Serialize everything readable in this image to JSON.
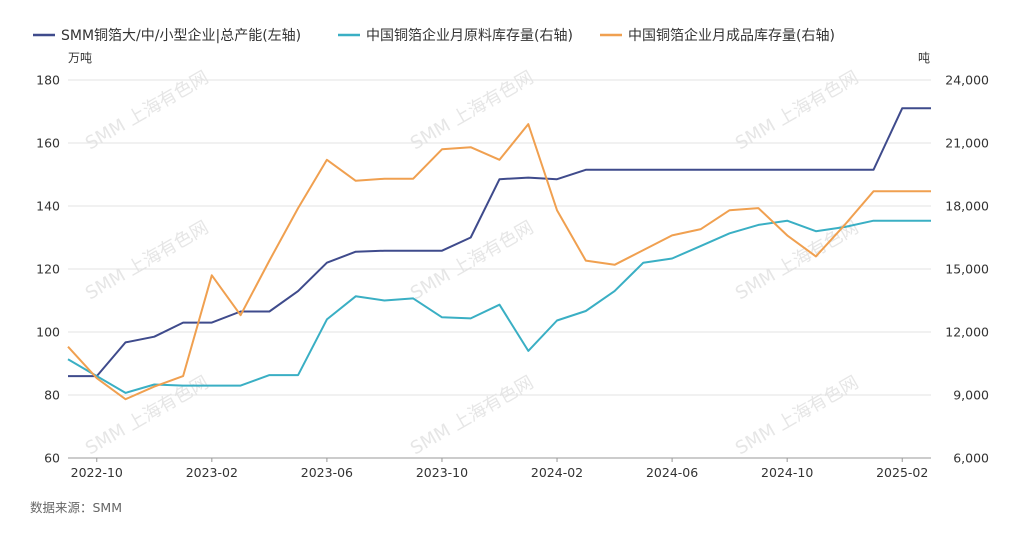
{
  "chart_data": {
    "type": "line",
    "title": "",
    "x": [
      "2022-09",
      "2022-10",
      "2022-11",
      "2022-12",
      "2023-01",
      "2023-02",
      "2023-03",
      "2023-04",
      "2023-05",
      "2023-06",
      "2023-07",
      "2023-08",
      "2023-09",
      "2023-10",
      "2023-11",
      "2023-12",
      "2024-01",
      "2024-02",
      "2024-03",
      "2024-04",
      "2024-05",
      "2024-06",
      "2024-07",
      "2024-08",
      "2024-09",
      "2024-10",
      "2024-11",
      "2024-12",
      "2025-01",
      "2025-02",
      "2025-03"
    ],
    "xtick_labels": [
      "2022-10",
      "2023-02",
      "2023-06",
      "2023-10",
      "2024-02",
      "2024-06",
      "2024-10",
      "2025-02"
    ],
    "left_axis": {
      "unit": "万吨",
      "ylim": [
        60,
        180
      ],
      "ticks": [
        "60",
        "80",
        "100",
        "120",
        "140",
        "160",
        "180"
      ]
    },
    "right_axis": {
      "unit": "吨",
      "ylim": [
        6000,
        24000
      ],
      "ticks": [
        "6,000",
        "9,000",
        "12,000",
        "15,000",
        "18,000",
        "21,000",
        "24,000"
      ]
    },
    "grid": true,
    "legend_position": "top",
    "series": [
      {
        "name": "SMM铜箔大/中/小型企业|总产能(左轴)",
        "axis": "left",
        "color": "#3f4b8c",
        "values": [
          86,
          86,
          96.7,
          98.5,
          103,
          103,
          106.5,
          106.5,
          113,
          122,
          125.5,
          125.8,
          125.8,
          125.8,
          130,
          148.5,
          149,
          148.5,
          151.5,
          151.5,
          151.5,
          151.5,
          151.5,
          151.5,
          151.5,
          151.5,
          151.5,
          151.5,
          151.5,
          171,
          171
        ]
      },
      {
        "name": "中国铜箔企业月原料库存量(右轴)",
        "axis": "right",
        "color": "#3aafc4",
        "values": [
          10700,
          9900,
          9100,
          9500,
          9450,
          9450,
          9450,
          9950,
          9950,
          12600,
          13700,
          13500,
          13600,
          12700,
          12650,
          13300,
          11100,
          12550,
          13000,
          13950,
          15300,
          15500,
          16100,
          16700,
          17100,
          17300,
          16800,
          17000,
          17300,
          17300,
          17300
        ],
        "values_note": ""
      },
      {
        "name": "中国铜箔企业月成品库存量(右轴)",
        "axis": "right",
        "color": "#f0a050",
        "values": [
          11300,
          9800,
          8800,
          9400,
          9900,
          14700,
          12800,
          15400,
          17900,
          20200,
          19200,
          19300,
          19300,
          20700,
          20800,
          20200,
          21900,
          17800,
          15400,
          15200,
          15900,
          16600,
          16900,
          17800,
          17900,
          16600,
          15600,
          17100,
          18700,
          18700,
          18700
        ]
      }
    ]
  },
  "footer": {
    "source": "数据来源：SMM"
  },
  "watermark": "SMM 上海有色网"
}
